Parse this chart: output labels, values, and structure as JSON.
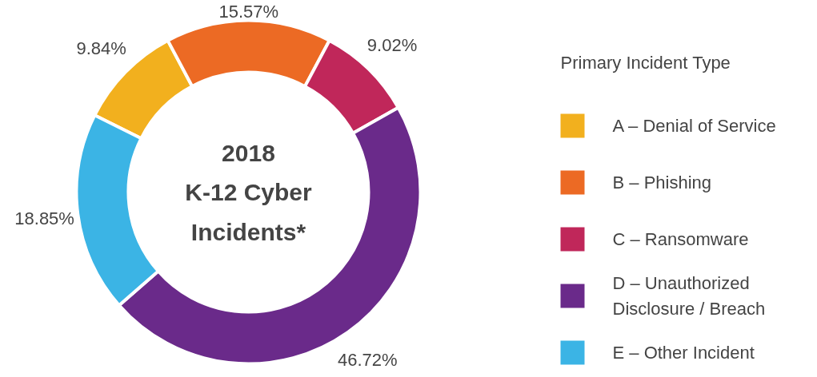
{
  "chart_data": {
    "type": "donut",
    "title": "2018\nK-12 Cyber\nIncidents*",
    "legend_title": "Primary Incident Type",
    "categories": [
      "A – Denial of Service",
      "B – Phishing",
      "C – Ransomware",
      "D – Unauthorized Disclosure / Breach",
      "E – Other Incident"
    ],
    "values": [
      9.84,
      15.57,
      9.02,
      46.72,
      18.85
    ],
    "value_labels": [
      "9.84%",
      "15.57%",
      "9.02%",
      "46.72%",
      "18.85%"
    ],
    "colors": [
      "#f2b01e",
      "#ec6a24",
      "#c0275a",
      "#6a2a8a",
      "#3bb4e5"
    ],
    "legend": "right"
  }
}
